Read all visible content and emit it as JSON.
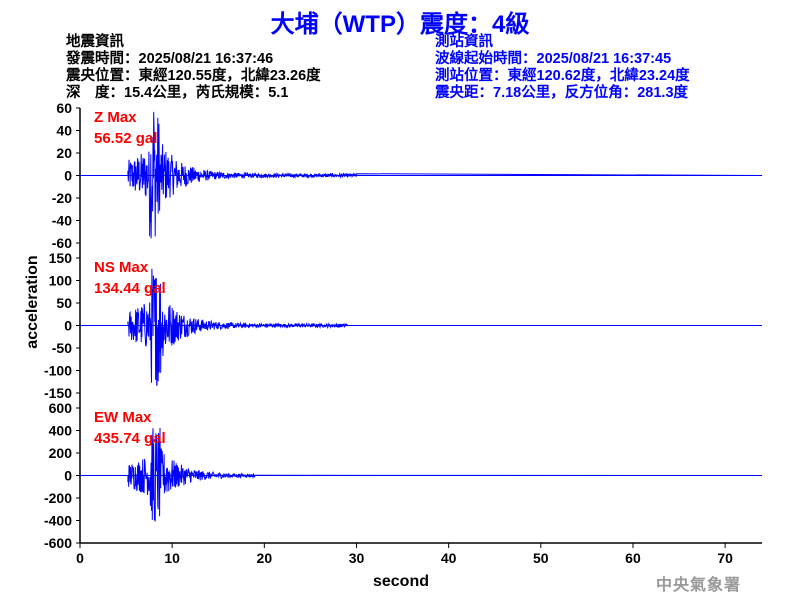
{
  "title": "大埔（WTP）震度：4級",
  "event_info": {
    "heading": "地震資訊",
    "origin_time": "發震時間：2025/08/21 16:37:46",
    "epicenter": "震央位置：東經120.55度，北緯23.26度",
    "depth_magnitude": "深　度：15.4公里，芮氏規模：5.1"
  },
  "station_info": {
    "heading": "測站資訊",
    "wave_start": "波線起始時間：2025/08/21 16:37:45",
    "location": "測站位置：東經120.62度，北緯23.24度",
    "distance": "震央距：7.18公里，反方位角：281.3度"
  },
  "watermark": "中央氣象署",
  "chart_data": [
    {
      "type": "line",
      "component": "Z",
      "label": "Z Max",
      "max_label": "56.52 gal",
      "peak": 56.52,
      "ylim": [
        -60,
        60
      ],
      "yticks": [
        60,
        40,
        20,
        0,
        -20,
        -40,
        -60
      ],
      "onset_s": 5.2,
      "peak_s": 8.0,
      "end_s": 30,
      "color": "#0000ff"
    },
    {
      "type": "line",
      "component": "NS",
      "label": "NS Max",
      "max_label": "134.44 gal",
      "peak": 134.44,
      "ylim": [
        -150,
        150
      ],
      "yticks": [
        150,
        100,
        50,
        0,
        -50,
        -100,
        -150
      ],
      "onset_s": 5.2,
      "peak_s": 8.2,
      "end_s": 29,
      "color": "#0000ff"
    },
    {
      "type": "line",
      "component": "EW",
      "label": "EW Max",
      "max_label": "435.74 gal",
      "peak": 435.74,
      "ylim": [
        -600,
        600
      ],
      "yticks": [
        600,
        400,
        200,
        0,
        -200,
        -400,
        -600
      ],
      "onset_s": 5.2,
      "peak_s": 8.1,
      "end_s": 19,
      "color": "#0000ff"
    }
  ],
  "axes": {
    "xlabel": "second",
    "ylabel": "acceleration",
    "xlim": [
      0,
      74
    ],
    "xticks": [
      0,
      10,
      20,
      30,
      40,
      50,
      60,
      70
    ]
  },
  "colors": {
    "title": "#0000ff",
    "label": "#ff0000",
    "trace": "#0000ff"
  }
}
